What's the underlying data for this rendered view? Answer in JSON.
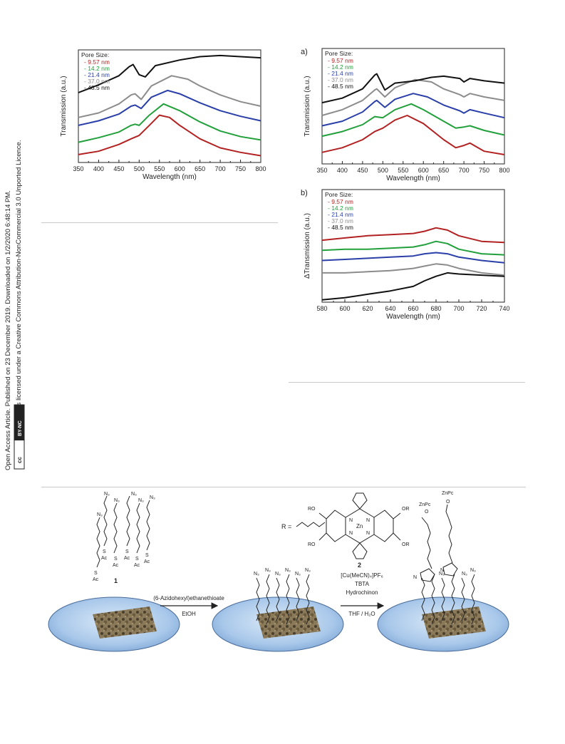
{
  "sidebar": {
    "line1": "Open Access Article. Published on 23 December 2019. Downloaded on 1/2/2020 6:48:14 PM.",
    "line2": "This article is licensed under a Creative Commons Attribution-NonCommercial 3.0 Unported Licence.",
    "badge_cc": "cc",
    "badge_by": "BY-NC"
  },
  "colors": {
    "s1": "#b22222",
    "s2": "#22a03c",
    "s3": "#2a3fa8",
    "s4": "#8c8c8c",
    "s5": "#111111"
  },
  "chart_data": [
    {
      "type": "line",
      "panel_label": "",
      "legend_title": "Pore Size:",
      "legend": [
        "- 9.57 nm",
        "- 14.2 nm",
        "- 21.4 nm",
        "- 37.0 nm",
        "- 48.5 nm"
      ],
      "xlabel": "Wavelength (nm)",
      "ylabel": "Transmission (a.u.)",
      "xlim": [
        350,
        800
      ],
      "ylim": [
        0,
        1
      ],
      "xticks": [
        "350",
        "400",
        "450",
        "500",
        "550",
        "600",
        "650",
        "700",
        "750",
        "800"
      ],
      "series": [
        {
          "name": "9.57 nm",
          "x": [
            350,
            400,
            450,
            480,
            500,
            525,
            550,
            575,
            600,
            650,
            700,
            750,
            800
          ],
          "y": [
            0.07,
            0.1,
            0.16,
            0.21,
            0.24,
            0.33,
            0.42,
            0.4,
            0.33,
            0.21,
            0.13,
            0.09,
            0.06
          ]
        },
        {
          "name": "14.2 nm",
          "x": [
            350,
            400,
            450,
            480,
            490,
            500,
            525,
            560,
            600,
            650,
            700,
            750,
            800
          ],
          "y": [
            0.18,
            0.22,
            0.27,
            0.33,
            0.34,
            0.33,
            0.42,
            0.52,
            0.46,
            0.36,
            0.28,
            0.23,
            0.2
          ]
        },
        {
          "name": "21.4 nm",
          "x": [
            350,
            400,
            450,
            480,
            490,
            505,
            530,
            570,
            600,
            650,
            700,
            750,
            800
          ],
          "y": [
            0.33,
            0.37,
            0.43,
            0.5,
            0.51,
            0.48,
            0.58,
            0.64,
            0.61,
            0.53,
            0.46,
            0.41,
            0.37
          ]
        },
        {
          "name": "37.0 nm",
          "x": [
            350,
            400,
            450,
            480,
            490,
            505,
            530,
            580,
            620,
            650,
            700,
            750,
            800
          ],
          "y": [
            0.4,
            0.44,
            0.52,
            0.6,
            0.61,
            0.56,
            0.68,
            0.77,
            0.74,
            0.68,
            0.6,
            0.54,
            0.5
          ]
        },
        {
          "name": "48.5 nm",
          "x": [
            350,
            400,
            450,
            475,
            485,
            500,
            515,
            540,
            600,
            650,
            700,
            750,
            800
          ],
          "y": [
            0.62,
            0.69,
            0.77,
            0.85,
            0.87,
            0.78,
            0.76,
            0.86,
            0.91,
            0.94,
            0.95,
            0.94,
            0.93
          ]
        }
      ]
    },
    {
      "type": "line",
      "panel_label": "a)",
      "legend_title": "Pore Size:",
      "legend": [
        "- 9.57 nm",
        "- 14.2 nm",
        "- 21.4 nm",
        "- 37.0 nm",
        "- 48.5 nm"
      ],
      "xlabel": "Wavelength (nm)",
      "ylabel": "Transmission (a.u.)",
      "xlim": [
        350,
        800
      ],
      "ylim": [
        0,
        1
      ],
      "xticks": [
        "350",
        "400",
        "450",
        "500",
        "550",
        "600",
        "650",
        "700",
        "750",
        "800"
      ],
      "series": [
        {
          "name": "9.57 nm",
          "x": [
            350,
            400,
            450,
            480,
            500,
            530,
            560,
            600,
            650,
            680,
            700,
            715,
            750,
            800
          ],
          "y": [
            0.1,
            0.14,
            0.21,
            0.28,
            0.31,
            0.38,
            0.42,
            0.35,
            0.21,
            0.14,
            0.16,
            0.18,
            0.11,
            0.08
          ]
        },
        {
          "name": "14.2 nm",
          "x": [
            350,
            400,
            450,
            480,
            500,
            530,
            570,
            600,
            650,
            680,
            700,
            715,
            750,
            800
          ],
          "y": [
            0.24,
            0.28,
            0.34,
            0.41,
            0.4,
            0.47,
            0.52,
            0.47,
            0.37,
            0.31,
            0.32,
            0.33,
            0.29,
            0.25
          ]
        },
        {
          "name": "21.4 nm",
          "x": [
            350,
            400,
            450,
            480,
            485,
            505,
            530,
            575,
            610,
            650,
            690,
            700,
            715,
            750,
            800
          ],
          "y": [
            0.33,
            0.37,
            0.45,
            0.54,
            0.55,
            0.49,
            0.56,
            0.61,
            0.58,
            0.51,
            0.46,
            0.44,
            0.47,
            0.44,
            0.4
          ]
        },
        {
          "name": "37.0 nm",
          "x": [
            350,
            400,
            450,
            480,
            485,
            505,
            530,
            580,
            620,
            650,
            690,
            700,
            715,
            750,
            800
          ],
          "y": [
            0.42,
            0.47,
            0.55,
            0.64,
            0.65,
            0.58,
            0.66,
            0.73,
            0.71,
            0.65,
            0.6,
            0.58,
            0.61,
            0.58,
            0.55
          ]
        },
        {
          "name": "48.5 nm",
          "x": [
            350,
            400,
            450,
            480,
            485,
            505,
            530,
            580,
            620,
            650,
            690,
            700,
            715,
            750,
            800
          ],
          "y": [
            0.53,
            0.57,
            0.65,
            0.77,
            0.78,
            0.64,
            0.7,
            0.72,
            0.75,
            0.76,
            0.74,
            0.71,
            0.74,
            0.72,
            0.7
          ]
        }
      ]
    },
    {
      "type": "line",
      "panel_label": "b)",
      "legend_title": "Pore Size:",
      "legend": [
        "- 9.57 nm",
        "- 14.2 nm",
        "- 21.4 nm",
        "- 37.0 nm",
        "- 48.5 nm"
      ],
      "xlabel": "Wavelength (nm)",
      "ylabel": "ΔTransmission (a.u.)",
      "xlim": [
        580,
        740
      ],
      "ylim": [
        0,
        1
      ],
      "xticks": [
        "580",
        "600",
        "620",
        "640",
        "660",
        "680",
        "700",
        "720",
        "740"
      ],
      "series": [
        {
          "name": "9.57 nm",
          "x": [
            580,
            600,
            620,
            640,
            660,
            670,
            680,
            690,
            700,
            720,
            740
          ],
          "y": [
            0.55,
            0.57,
            0.59,
            0.6,
            0.61,
            0.63,
            0.66,
            0.64,
            0.59,
            0.54,
            0.53
          ]
        },
        {
          "name": "14.2 nm",
          "x": [
            580,
            600,
            620,
            640,
            660,
            670,
            680,
            690,
            700,
            720,
            740
          ],
          "y": [
            0.46,
            0.47,
            0.47,
            0.48,
            0.49,
            0.51,
            0.54,
            0.52,
            0.47,
            0.43,
            0.42
          ]
        },
        {
          "name": "21.4 nm",
          "x": [
            580,
            600,
            620,
            640,
            660,
            670,
            680,
            690,
            700,
            720,
            740
          ],
          "y": [
            0.37,
            0.38,
            0.39,
            0.4,
            0.41,
            0.43,
            0.44,
            0.43,
            0.4,
            0.37,
            0.35
          ]
        },
        {
          "name": "37.0 nm",
          "x": [
            580,
            600,
            620,
            640,
            660,
            670,
            680,
            690,
            700,
            720,
            740
          ],
          "y": [
            0.26,
            0.26,
            0.27,
            0.28,
            0.3,
            0.32,
            0.34,
            0.33,
            0.3,
            0.26,
            0.24
          ]
        },
        {
          "name": "48.5 nm",
          "x": [
            580,
            600,
            620,
            640,
            660,
            670,
            680,
            690,
            700,
            720,
            740
          ],
          "y": [
            0.02,
            0.04,
            0.07,
            0.1,
            0.14,
            0.19,
            0.23,
            0.26,
            0.25,
            0.24,
            0.23
          ]
        }
      ]
    }
  ],
  "scheme": {
    "compound1_label": "1",
    "r_label": "R =",
    "zn_label": "Zn",
    "compound2_label": "2",
    "reagent_arrow1_top": "(6-Azidohexyl)ethanethioate",
    "reagent_arrow1_bottom": "EtOH",
    "reagent_arrow2_line1": "[Cu(MeCN)₄]PF₆",
    "reagent_arrow2_line2": "TBTA",
    "reagent_arrow2_line3": "Hydrochinon",
    "reagent_arrow2_line4": "THF / H₂O",
    "n3": "N₃",
    "s": "S",
    "ac": "Ac",
    "ro": "RO",
    "or": "OR",
    "n": "N",
    "znpc": "ZnPc",
    "o": "O"
  }
}
